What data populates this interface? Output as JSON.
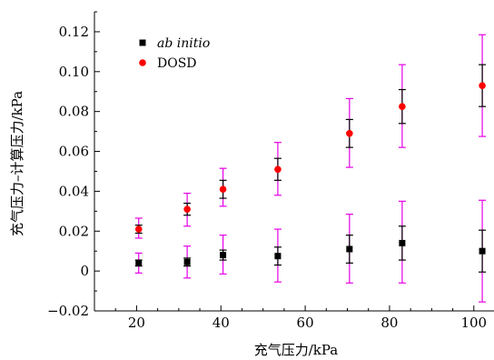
{
  "chart_data": {
    "type": "scatter",
    "title": "",
    "xlabel": "充气压力/kPa",
    "ylabel": "充气压力–计算压力/kPa",
    "xlim": [
      10,
      105
    ],
    "ylim": [
      -0.02,
      0.13
    ],
    "x_ticks": [
      20,
      40,
      60,
      80,
      100
    ],
    "x_tick_labels": [
      "20",
      "40",
      "60",
      "80",
      "100"
    ],
    "y_ticks": [
      -0.02,
      0,
      0.02,
      0.04,
      0.06,
      0.08,
      0.1,
      0.12
    ],
    "y_tick_labels": [
      "−0.02",
      "0",
      "0.02",
      "0.04",
      "0.06",
      "0.08",
      "0.10",
      "0.12"
    ],
    "grid": false,
    "legend_position": "top-left",
    "series": [
      {
        "name": "ab initio",
        "marker": "square",
        "color": "#000000",
        "error_color": "#000000",
        "points": [
          {
            "x": 20.5,
            "y": 0.004,
            "err": 0.0015
          },
          {
            "x": 32,
            "y": 0.0045,
            "err": 0.002
          },
          {
            "x": 40.5,
            "y": 0.008,
            "err": 0.0025
          },
          {
            "x": 53.5,
            "y": 0.0075,
            "err": 0.0045
          },
          {
            "x": 70.5,
            "y": 0.011,
            "err": 0.007
          },
          {
            "x": 83,
            "y": 0.014,
            "err": 0.0085
          },
          {
            "x": 102,
            "y": 0.01,
            "err": 0.0105
          }
        ]
      },
      {
        "name": "DOSD",
        "marker": "circle",
        "color": "#ff0000",
        "error_color": "#000000",
        "points": [
          {
            "x": 20.5,
            "y": 0.021,
            "err": 0.002
          },
          {
            "x": 32,
            "y": 0.031,
            "err": 0.003
          },
          {
            "x": 40.5,
            "y": 0.041,
            "err": 0.0045
          },
          {
            "x": 53.5,
            "y": 0.051,
            "err": 0.0055
          },
          {
            "x": 70.5,
            "y": 0.069,
            "err": 0.007
          },
          {
            "x": 83,
            "y": 0.0825,
            "err": 0.0085
          },
          {
            "x": 102,
            "y": 0.093,
            "err": 0.0105
          }
        ]
      }
    ],
    "systematic_error_bars": {
      "color": "#e600e6",
      "bars": [
        {
          "x": 20.5,
          "low": -0.001,
          "high": 0.009
        },
        {
          "x": 32,
          "low": -0.0035,
          "high": 0.0125
        },
        {
          "x": 40.5,
          "low": -0.0015,
          "high": 0.018
        },
        {
          "x": 53.5,
          "low": -0.0055,
          "high": 0.021
        },
        {
          "x": 70.5,
          "low": -0.006,
          "high": 0.0285
        },
        {
          "x": 83,
          "low": -0.006,
          "high": 0.035
        },
        {
          "x": 102,
          "low": -0.0155,
          "high": 0.0355
        },
        {
          "x": 20.5,
          "low": 0.0165,
          "high": 0.0265
        },
        {
          "x": 32,
          "low": 0.0225,
          "high": 0.039
        },
        {
          "x": 40.5,
          "low": 0.0325,
          "high": 0.0515
        },
        {
          "x": 53.5,
          "low": 0.038,
          "high": 0.0645
        },
        {
          "x": 70.5,
          "low": 0.052,
          "high": 0.0865
        },
        {
          "x": 83,
          "low": 0.062,
          "high": 0.1035
        },
        {
          "x": 102,
          "low": 0.0675,
          "high": 0.1185
        }
      ]
    }
  }
}
